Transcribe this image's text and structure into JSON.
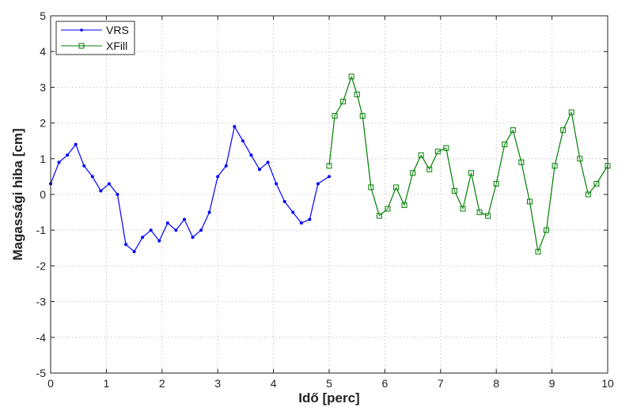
{
  "chart_data": {
    "type": "line",
    "title": "",
    "xlabel": "Idő [perc]",
    "ylabel": "Magassági hiba [cm]",
    "xlim": [
      0,
      10
    ],
    "ylim": [
      -5,
      5
    ],
    "grid": true,
    "legend_position": "top-left",
    "xticks": [
      "0",
      "1",
      "2",
      "3",
      "4",
      "5",
      "6",
      "7",
      "8",
      "9",
      "10"
    ],
    "yticks": [
      "-5",
      "-4",
      "-3",
      "-2",
      "-1",
      "0",
      "1",
      "2",
      "3",
      "4",
      "5"
    ],
    "series": [
      {
        "name": "VRS",
        "color": "#0000ff",
        "marker": "dot",
        "x": [
          0,
          0.15,
          0.3,
          0.45,
          0.6,
          0.75,
          0.9,
          1.05,
          1.2,
          1.35,
          1.5,
          1.65,
          1.8,
          1.95,
          2.1,
          2.25,
          2.4,
          2.55,
          2.7,
          2.85,
          3.0,
          3.15,
          3.3,
          3.45,
          3.6,
          3.75,
          3.9,
          4.05,
          4.2,
          4.35,
          4.5,
          4.65,
          4.8,
          5.0
        ],
        "y": [
          0.3,
          0.9,
          1.1,
          1.4,
          0.8,
          0.5,
          0.1,
          0.3,
          0.0,
          -1.4,
          -1.6,
          -1.2,
          -1.0,
          -1.3,
          -0.8,
          -1.0,
          -0.7,
          -1.2,
          -1.0,
          -0.5,
          0.5,
          0.8,
          1.9,
          1.5,
          1.1,
          0.7,
          0.9,
          0.3,
          -0.2,
          -0.5,
          -0.8,
          -0.7,
          0.3,
          0.5
        ]
      },
      {
        "name": "XFill",
        "color": "#007f00",
        "marker": "square",
        "x": [
          5.0,
          5.1,
          5.25,
          5.4,
          5.5,
          5.6,
          5.75,
          5.9,
          6.05,
          6.2,
          6.35,
          6.5,
          6.65,
          6.8,
          6.95,
          7.1,
          7.25,
          7.4,
          7.55,
          7.7,
          7.85,
          8.0,
          8.15,
          8.3,
          8.45,
          8.6,
          8.75,
          8.9,
          9.05,
          9.2,
          9.35,
          9.5,
          9.65,
          9.8,
          10.0
        ],
        "y": [
          0.8,
          2.2,
          2.6,
          3.3,
          2.8,
          2.2,
          0.2,
          -0.6,
          -0.4,
          0.2,
          -0.3,
          0.6,
          1.1,
          0.7,
          1.2,
          1.3,
          0.1,
          -0.4,
          0.6,
          -0.5,
          -0.6,
          0.3,
          1.4,
          1.8,
          0.9,
          -0.2,
          -1.6,
          -1.0,
          0.8,
          1.8,
          2.3,
          1.0,
          0.0,
          0.3,
          0.8
        ]
      }
    ]
  }
}
